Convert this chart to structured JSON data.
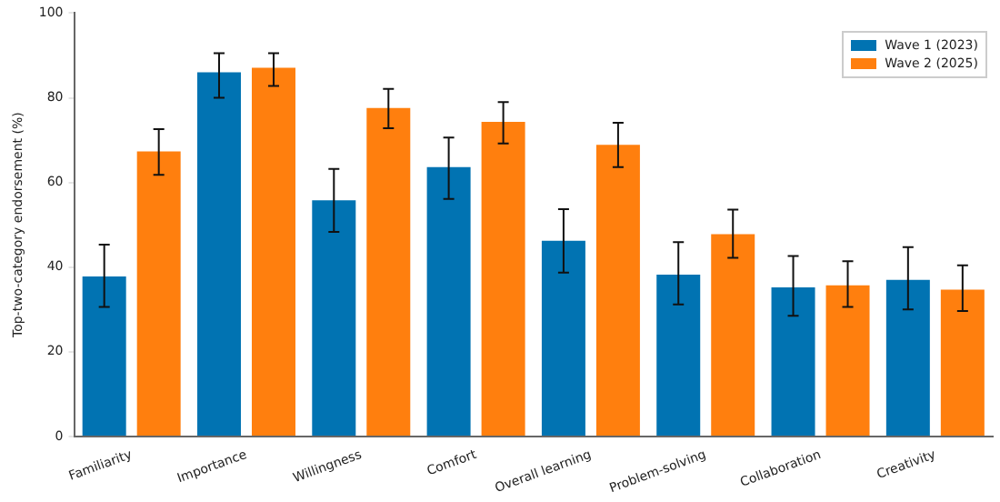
{
  "chart_data": {
    "type": "bar",
    "ylabel": "Top-two-category endorsement (%)",
    "categories": [
      "Familiarity",
      "Importance",
      "Willingness",
      "Comfort",
      "Overall learning",
      "Problem-solving",
      "Collaboration",
      "Creativity"
    ],
    "series": [
      {
        "name": "Wave 1 (2023)",
        "color": "#0173b2",
        "values": [
          37.8,
          86.0,
          55.8,
          63.6,
          46.2,
          38.2,
          35.2,
          37.0
        ],
        "errors": [
          [
            30.6,
            45.3
          ],
          [
            80.0,
            90.5
          ],
          [
            48.3,
            63.2
          ],
          [
            56.1,
            70.6
          ],
          [
            38.7,
            53.7
          ],
          [
            31.2,
            45.9
          ],
          [
            28.5,
            42.6
          ],
          [
            30.0,
            44.7
          ]
        ]
      },
      {
        "name": "Wave 2 (2025)",
        "color": "#ff7f0e",
        "values": [
          67.3,
          87.1,
          77.6,
          74.3,
          68.9,
          47.8,
          35.7,
          34.7
        ],
        "errors": [
          [
            61.8,
            72.6
          ],
          [
            82.8,
            90.5
          ],
          [
            72.8,
            82.1
          ],
          [
            69.2,
            79.0
          ],
          [
            63.6,
            74.1
          ],
          [
            42.2,
            53.6
          ],
          [
            30.6,
            41.4
          ],
          [
            29.6,
            40.4
          ]
        ]
      }
    ],
    "ylim": [
      0,
      100
    ],
    "yticks": [
      0,
      20,
      40,
      60,
      80,
      100
    ],
    "grid": false,
    "legend": "top right"
  }
}
